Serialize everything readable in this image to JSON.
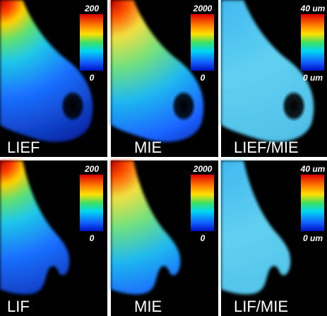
{
  "panels": [
    {
      "label": "LIEF",
      "scale_max": "200",
      "scale_min": "0"
    },
    {
      "label": "MIE",
      "scale_max": "2000",
      "scale_min": "0"
    },
    {
      "label": "LIEF/MIE",
      "scale_max": "40 um",
      "scale_min": "0 um"
    },
    {
      "label": "LIF",
      "scale_max": "200",
      "scale_min": "0"
    },
    {
      "label": "MIE",
      "scale_max": "2000",
      "scale_min": "0"
    },
    {
      "label": "LIF/MIE",
      "scale_max": "40 um",
      "scale_min": "0 um"
    }
  ]
}
